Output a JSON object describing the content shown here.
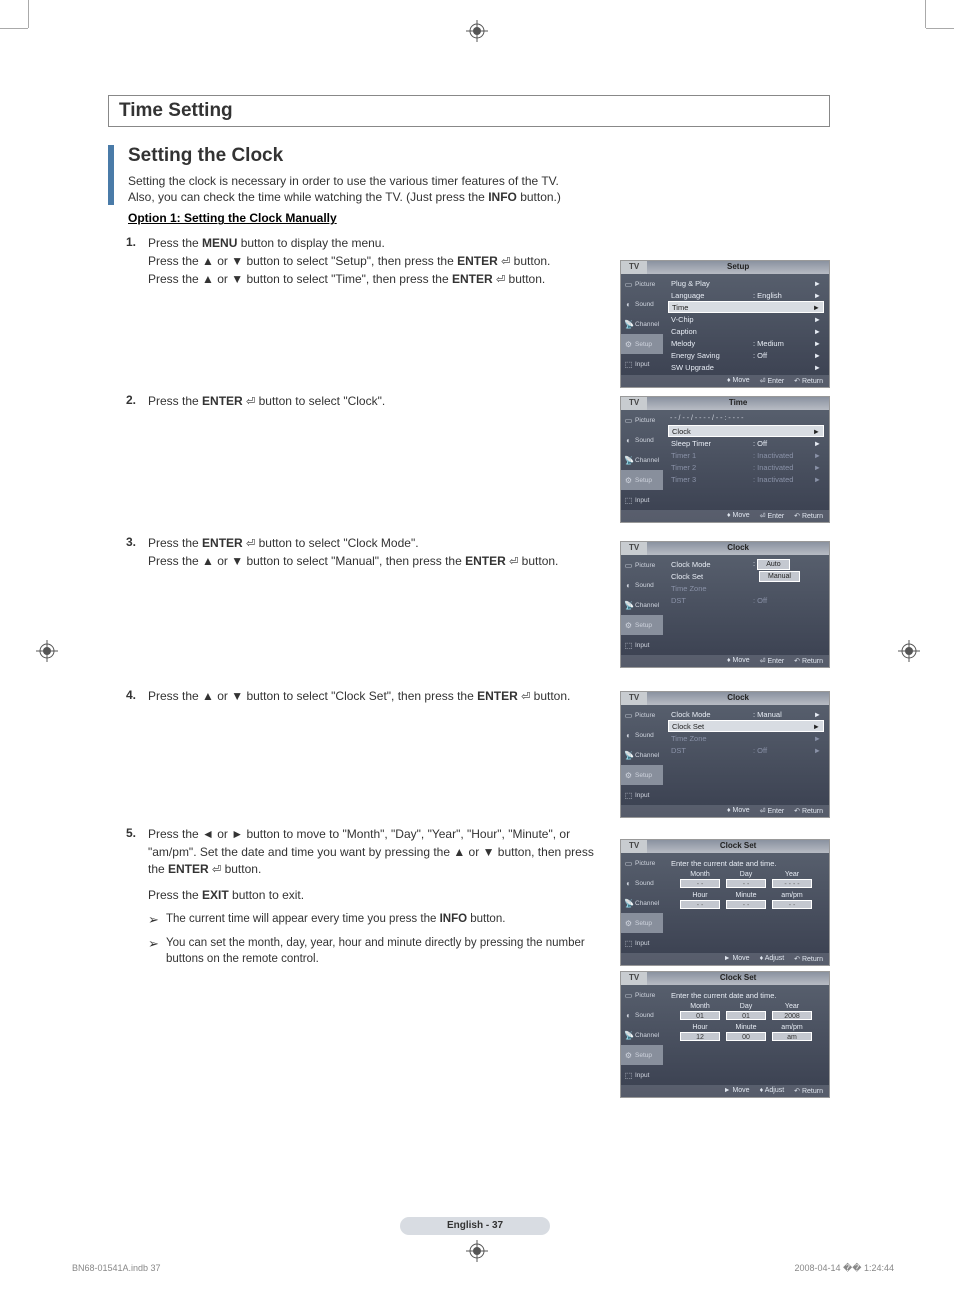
{
  "section_title": "Time Setting",
  "subsection_title": "Setting the Clock",
  "intro_line1": "Setting the clock is necessary in order to use the various timer features of the TV.",
  "intro_line2_a": "Also, you can check the time while watching the TV. (Just press the ",
  "intro_line2_b": "INFO",
  "intro_line2_c": " button.)",
  "option1_title": "Option 1: Setting the Clock Manually",
  "steps": {
    "s1": {
      "num": "1.",
      "l1a": "Press the ",
      "l1b": "MENU",
      "l1c": " button to display the menu.",
      "l2a": "Press the ▲ or ▼ button to select \"Setup\", then press the ",
      "l2b": "ENTER",
      "l2c": " button.",
      "l3a": "Press the ▲ or ▼ button to select \"Time\", then press the ",
      "l3b": "ENTER",
      "l3c": " button."
    },
    "s2": {
      "num": "2.",
      "l1a": "Press the ",
      "l1b": "ENTER",
      "l1c": " button to select \"Clock\"."
    },
    "s3": {
      "num": "3.",
      "l1a": "Press the ",
      "l1b": "ENTER",
      "l1c": " button to select \"Clock Mode\".",
      "l2a": "Press the ▲ or ▼ button to select \"Manual\", then press the ",
      "l2b": "ENTER",
      "l2c": " button."
    },
    "s4": {
      "num": "4.",
      "l1a": "Press the ▲ or ▼ button to select \"Clock Set\", then press the ",
      "l1b": "ENTER",
      "l1c": " button."
    },
    "s5": {
      "num": "5.",
      "l1a": "Press the ◄ or ► button to move to \"Month\", \"Day\", \"Year\", \"Hour\", \"Minute\", or \"am/pm\". Set the date and time you want by pressing the ▲ or ▼ button, then press the ",
      "l1b": "ENTER",
      "l1c": " button.",
      "l2a": "Press the ",
      "l2b": "EXIT",
      "l2c": " button to exit.",
      "n1a": "The current time will appear every time you press the ",
      "n1b": "INFO",
      "n1c": " button.",
      "n2": "You can set the month, day, year, hour and minute directly by pressing the number buttons on the remote control."
    }
  },
  "tv_common": {
    "tab": "TV",
    "side": {
      "picture": "Picture",
      "sound": "Sound",
      "channel": "Channel",
      "setup": "Setup",
      "input": "Input"
    },
    "footer": {
      "move": "Move",
      "enter": "Enter",
      "return": "Return",
      "adjust": "Adjust"
    }
  },
  "menu1": {
    "title": "Setup",
    "rows": [
      {
        "label": "Plug & Play",
        "val": "",
        "arrow": "►"
      },
      {
        "label": "Language",
        "val": ": English",
        "arrow": "►"
      },
      {
        "label": "Time",
        "val": "",
        "arrow": "►",
        "hl": true
      },
      {
        "label": "V-Chip",
        "val": "",
        "arrow": "►"
      },
      {
        "label": "Caption",
        "val": "",
        "arrow": "►"
      },
      {
        "label": "Melody",
        "val": ": Medium",
        "arrow": "►"
      },
      {
        "label": "Energy Saving",
        "val": ": Off",
        "arrow": "►"
      },
      {
        "label": "SW Upgrade",
        "val": "",
        "arrow": "►"
      }
    ]
  },
  "menu2": {
    "title": "Time",
    "header_text": "- - / - - / - - - - / - - : - -  - -",
    "rows": [
      {
        "label": "Clock",
        "val": "",
        "arrow": "►",
        "hl": true
      },
      {
        "label": "Sleep Timer",
        "val": ": Off",
        "arrow": "►"
      },
      {
        "label": "Timer 1",
        "val": ": Inactivated",
        "arrow": "►",
        "dim": true
      },
      {
        "label": "Timer 2",
        "val": ": Inactivated",
        "arrow": "►",
        "dim": true
      },
      {
        "label": "Timer 3",
        "val": ": Inactivated",
        "arrow": "►",
        "dim": true
      }
    ]
  },
  "menu3": {
    "title": "Clock",
    "rows": [
      {
        "label": "Clock Mode",
        "val": ":",
        "sel1": "Auto",
        "sel2": "Manual"
      },
      {
        "label": "Clock Set",
        "val": "",
        "arrow": ""
      },
      {
        "label": "Time Zone",
        "val": "",
        "arrow": "",
        "dim": true
      },
      {
        "label": "DST",
        "val": ": Off",
        "arrow": "",
        "dim": true
      }
    ]
  },
  "menu4": {
    "title": "Clock",
    "rows": [
      {
        "label": "Clock Mode",
        "val": ": Manual",
        "arrow": "►"
      },
      {
        "label": "Clock Set",
        "val": "",
        "arrow": "►",
        "hl": true
      },
      {
        "label": "Time Zone",
        "val": "",
        "arrow": "►",
        "dim": true
      },
      {
        "label": "DST",
        "val": ": Off",
        "arrow": "►",
        "dim": true
      }
    ]
  },
  "menu5": {
    "title": "Clock Set",
    "prompt": "Enter the current date and time.",
    "cols1": [
      "Month",
      "Day",
      "Year"
    ],
    "vals1": [
      "- -",
      "- -",
      "- - - -"
    ],
    "cols2": [
      "Hour",
      "Minute",
      "am/pm"
    ],
    "vals2": [
      "- -",
      "- -",
      "- -"
    ]
  },
  "menu6": {
    "title": "Clock Set",
    "prompt": "Enter the current date and time.",
    "cols1": [
      "Month",
      "Day",
      "Year"
    ],
    "vals1": [
      "01",
      "01",
      "2008"
    ],
    "cols2": [
      "Hour",
      "Minute",
      "am/pm"
    ],
    "vals2": [
      "12",
      "00",
      "am"
    ]
  },
  "footer_text": "English - 37",
  "doc_id": "BN68-01541A.indb   37",
  "doc_ts": "2008-04-14   �� 1:24:44",
  "colors": {
    "blue_accent": "#4a7ba8",
    "menu_bg_top": "#5a6270",
    "menu_bg_bot": "#3a4050",
    "menu_hl": "#d8dce2"
  }
}
